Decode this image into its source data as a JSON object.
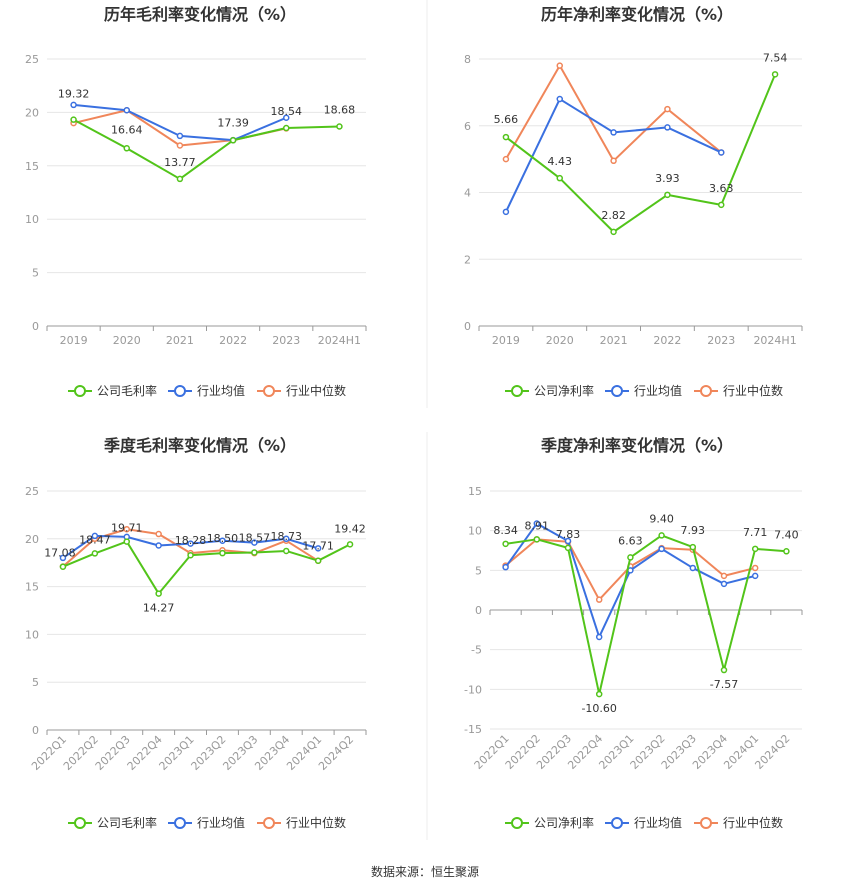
{
  "series_colors": [
    "#52c41a",
    "#3a70e0",
    "#f0865a"
  ],
  "legend_gross": [
    "公司毛利率",
    "行业均值",
    "行业中位数"
  ],
  "legend_net": [
    "公司净利率",
    "行业均值",
    "行业中位数"
  ],
  "source": "数据来源：恒生聚源",
  "chart_data": [
    {
      "type": "line",
      "title": "历年毛利率变化情况（%）",
      "categories": [
        "2019",
        "2020",
        "2021",
        "2022",
        "2023",
        "2024H1"
      ],
      "ylim": [
        0,
        25
      ],
      "yticks": [
        0,
        5,
        10,
        15,
        20,
        25
      ],
      "grid": true,
      "legend_position": "bottom",
      "series": [
        {
          "name": "公司毛利率",
          "values": [
            19.32,
            16.64,
            13.77,
            17.39,
            18.54,
            18.68
          ],
          "labels": [
            "19.32",
            "16.64",
            "13.77",
            "17.39",
            "18.54",
            "18.68"
          ]
        },
        {
          "name": "行业均值",
          "values": [
            20.7,
            20.2,
            17.8,
            17.4,
            19.5,
            null
          ]
        },
        {
          "name": "行业中位数",
          "values": [
            19.0,
            20.2,
            16.9,
            17.4,
            18.5,
            null
          ]
        }
      ]
    },
    {
      "type": "line",
      "title": "历年净利率变化情况（%）",
      "categories": [
        "2019",
        "2020",
        "2021",
        "2022",
        "2023",
        "2024H1"
      ],
      "ylim": [
        0,
        8
      ],
      "yticks": [
        0,
        2,
        4,
        6,
        8
      ],
      "grid": true,
      "legend_position": "bottom",
      "series": [
        {
          "name": "公司净利率",
          "values": [
            5.66,
            4.43,
            2.82,
            3.93,
            3.63,
            7.54
          ],
          "labels": [
            "5.66",
            "4.43",
            "2.82",
            "3.93",
            "3.63",
            "7.54"
          ]
        },
        {
          "name": "行业均值",
          "values": [
            3.42,
            6.8,
            5.8,
            5.95,
            5.2,
            null
          ]
        },
        {
          "name": "行业中位数",
          "values": [
            5.0,
            7.8,
            4.95,
            6.5,
            5.2,
            null
          ]
        }
      ]
    },
    {
      "type": "line",
      "title": "季度毛利率变化情况（%）",
      "categories": [
        "2022Q1",
        "2022Q2",
        "2022Q3",
        "2022Q4",
        "2023Q1",
        "2023Q2",
        "2023Q3",
        "2023Q4",
        "2024Q1",
        "2024Q2"
      ],
      "ylim": [
        0,
        25
      ],
      "yticks": [
        0,
        5,
        10,
        15,
        20,
        25
      ],
      "grid": true,
      "legend_position": "bottom",
      "series": [
        {
          "name": "公司毛利率",
          "values": [
            17.08,
            18.47,
            19.71,
            14.27,
            18.28,
            18.5,
            18.57,
            18.73,
            17.71,
            19.42
          ],
          "labels": [
            "17.08",
            "18.47",
            "19.71",
            "14.27",
            "18.28",
            "18.50",
            "18.57",
            "18.73",
            "17.71",
            "19.42"
          ]
        },
        {
          "name": "行业均值",
          "values": [
            18.0,
            20.3,
            20.2,
            19.3,
            19.5,
            19.8,
            19.6,
            20.0,
            19.0,
            null
          ]
        },
        {
          "name": "行业中位数",
          "values": [
            17.1,
            20.0,
            21.0,
            20.5,
            18.5,
            18.8,
            18.5,
            19.8,
            17.7,
            null
          ]
        }
      ]
    },
    {
      "type": "line",
      "title": "季度净利率变化情况（%）",
      "categories": [
        "2022Q1",
        "2022Q2",
        "2022Q3",
        "2022Q4",
        "2023Q1",
        "2023Q2",
        "2023Q3",
        "2023Q4",
        "2024Q1",
        "2024Q2"
      ],
      "ylim": [
        -15,
        15
      ],
      "yticks": [
        -15,
        -10,
        -5,
        0,
        5,
        10,
        15
      ],
      "grid": true,
      "legend_position": "bottom",
      "series": [
        {
          "name": "公司净利率",
          "values": [
            8.34,
            8.91,
            7.83,
            -10.6,
            6.63,
            9.4,
            7.93,
            -7.57,
            7.71,
            7.4
          ],
          "labels": [
            "8.34",
            "8.91",
            "7.83",
            "-10.60",
            "6.63",
            "9.40",
            "7.93",
            "-7.57",
            "7.71",
            "7.40"
          ]
        },
        {
          "name": "行业均值",
          "values": [
            5.4,
            10.9,
            8.7,
            -3.4,
            5.0,
            7.7,
            5.3,
            3.3,
            4.3,
            null
          ]
        },
        {
          "name": "行业中位数",
          "values": [
            5.6,
            8.9,
            8.6,
            1.3,
            5.5,
            7.8,
            7.6,
            4.3,
            5.3,
            null
          ]
        }
      ]
    }
  ]
}
